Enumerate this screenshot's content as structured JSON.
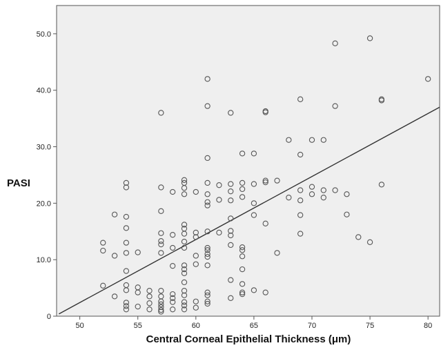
{
  "chart_data": {
    "type": "scatter",
    "title": "",
    "xlabel": "Central Corneal Epithelial Thickness (μm)",
    "ylabel": "PASI",
    "xlim": [
      48,
      81
    ],
    "ylim": [
      0,
      55
    ],
    "xticks": [
      50,
      55,
      60,
      65,
      70,
      75,
      80
    ],
    "yticks": [
      0,
      10,
      20,
      30,
      40,
      50
    ],
    "xtick_labels": [
      "50",
      "55",
      "60",
      "65",
      "70",
      "75",
      "80"
    ],
    "ytick_labels": [
      "0",
      "10.0",
      "20.0",
      "30.0",
      "40.0",
      "50.0"
    ],
    "grid": false,
    "plot_background": "#efefef",
    "marker_color": "#555555",
    "line_color": "#333333",
    "fit_line": {
      "x": [
        48.2,
        81
      ],
      "y": [
        0.4,
        37.0
      ]
    },
    "points": [
      [
        52,
        13
      ],
      [
        52,
        11.6
      ],
      [
        52,
        5.4
      ],
      [
        53,
        18
      ],
      [
        53,
        10.7
      ],
      [
        53,
        3.5
      ],
      [
        54,
        23.6
      ],
      [
        54,
        22.8
      ],
      [
        54,
        17.6
      ],
      [
        54,
        15.6
      ],
      [
        54,
        13
      ],
      [
        54,
        11.2
      ],
      [
        54,
        8
      ],
      [
        54,
        5.5
      ],
      [
        54,
        4.6
      ],
      [
        54,
        2.4
      ],
      [
        54,
        1.8
      ],
      [
        54,
        1.2
      ],
      [
        55,
        11.3
      ],
      [
        55,
        5.1
      ],
      [
        55,
        4.2
      ],
      [
        55,
        1.7
      ],
      [
        56,
        4.5
      ],
      [
        56,
        3.5
      ],
      [
        56,
        2.3
      ],
      [
        56,
        1.2
      ],
      [
        57,
        36
      ],
      [
        57,
        22.8
      ],
      [
        57,
        18.6
      ],
      [
        57,
        14.7
      ],
      [
        57,
        13.3
      ],
      [
        57,
        12.7
      ],
      [
        57,
        11.2
      ],
      [
        57,
        4.5
      ],
      [
        57,
        3.5
      ],
      [
        57,
        2.6
      ],
      [
        57,
        2.1
      ],
      [
        57,
        1.6
      ],
      [
        57,
        1.1
      ],
      [
        57,
        0.8
      ],
      [
        58,
        22
      ],
      [
        58,
        14.4
      ],
      [
        58,
        12.1
      ],
      [
        58,
        8.9
      ],
      [
        58,
        3.9
      ],
      [
        58,
        3.2
      ],
      [
        58,
        2.5
      ],
      [
        58,
        1.2
      ],
      [
        59,
        24.1
      ],
      [
        59,
        23.6
      ],
      [
        59,
        22.7
      ],
      [
        59,
        21.6
      ],
      [
        59,
        16.2
      ],
      [
        59,
        15.5
      ],
      [
        59,
        14.6
      ],
      [
        59,
        13.2
      ],
      [
        59,
        12.1
      ],
      [
        59,
        9
      ],
      [
        59,
        8.3
      ],
      [
        59,
        7.6
      ],
      [
        59,
        6
      ],
      [
        59,
        4.5
      ],
      [
        59,
        3.7
      ],
      [
        59,
        2.5
      ],
      [
        59,
        1.9
      ],
      [
        59,
        1.2
      ],
      [
        60,
        22
      ],
      [
        60,
        14.8
      ],
      [
        60,
        14
      ],
      [
        60,
        10.7
      ],
      [
        60,
        9.2
      ],
      [
        60,
        2.6
      ],
      [
        60,
        1.5
      ],
      [
        61,
        42
      ],
      [
        61,
        37.2
      ],
      [
        61,
        28
      ],
      [
        61,
        23.6
      ],
      [
        61,
        21.6
      ],
      [
        61,
        20.2
      ],
      [
        61,
        19.6
      ],
      [
        61,
        15
      ],
      [
        61,
        12.1
      ],
      [
        61,
        11.7
      ],
      [
        61,
        11
      ],
      [
        61,
        10.5
      ],
      [
        61,
        9
      ],
      [
        61,
        4.2
      ],
      [
        61,
        3.7
      ],
      [
        61,
        2.6
      ],
      [
        61,
        2.2
      ],
      [
        62,
        23.2
      ],
      [
        62,
        20.6
      ],
      [
        62,
        14.8
      ],
      [
        63,
        36
      ],
      [
        63,
        23.4
      ],
      [
        63,
        22.1
      ],
      [
        63,
        20.5
      ],
      [
        63,
        17.3
      ],
      [
        63,
        15.1
      ],
      [
        63,
        14.3
      ],
      [
        63,
        12.6
      ],
      [
        63,
        6.4
      ],
      [
        63,
        3.2
      ],
      [
        64,
        28.8
      ],
      [
        64,
        23.6
      ],
      [
        64,
        22.5
      ],
      [
        64,
        21.1
      ],
      [
        64,
        12.2
      ],
      [
        64,
        11.7
      ],
      [
        64,
        10.6
      ],
      [
        64,
        8.3
      ],
      [
        64,
        5.7
      ],
      [
        64,
        4.2
      ],
      [
        64,
        3.9
      ],
      [
        65,
        28.8
      ],
      [
        65,
        23.4
      ],
      [
        65,
        20
      ],
      [
        65,
        17.9
      ],
      [
        65,
        4.6
      ],
      [
        66,
        36.1
      ],
      [
        66,
        36.3
      ],
      [
        66,
        24
      ],
      [
        66,
        23.7
      ],
      [
        66,
        16.4
      ],
      [
        66,
        4.2
      ],
      [
        67,
        24
      ],
      [
        67,
        11.2
      ],
      [
        68,
        31.2
      ],
      [
        68,
        21
      ],
      [
        69,
        38.4
      ],
      [
        69,
        28.6
      ],
      [
        69,
        22.3
      ],
      [
        69,
        20.5
      ],
      [
        69,
        17.9
      ],
      [
        69,
        14.6
      ],
      [
        70,
        31.2
      ],
      [
        70,
        22.9
      ],
      [
        70,
        21.6
      ],
      [
        71,
        31.2
      ],
      [
        71,
        22.3
      ],
      [
        71,
        21
      ],
      [
        72,
        48.3
      ],
      [
        72,
        37.2
      ],
      [
        72,
        22.3
      ],
      [
        73,
        21.6
      ],
      [
        73,
        18
      ],
      [
        74,
        14
      ],
      [
        75,
        49.2
      ],
      [
        75,
        13.1
      ],
      [
        76,
        38.4
      ],
      [
        76,
        38.2
      ],
      [
        76,
        23.3
      ],
      [
        80,
        42
      ]
    ]
  }
}
